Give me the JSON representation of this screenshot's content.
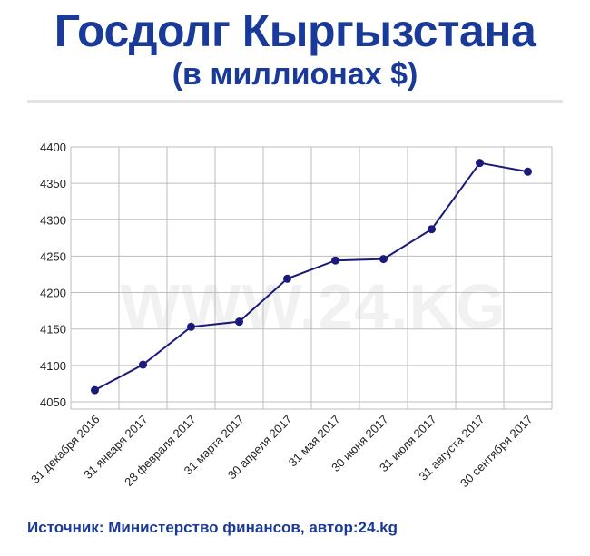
{
  "header": {
    "title": "Госдолг Кыргызстана",
    "subtitle": "(в миллионах $)"
  },
  "watermark": "WWW.24.KG",
  "source": "Источник: Министерство финансов, автор:24.kg",
  "colors": {
    "title": "#1a3a9a",
    "line": "#1a1a7a",
    "grid": "#bdbdbd",
    "watermark": "#f1f1f1"
  },
  "chart_data": {
    "type": "line",
    "categories": [
      "31 декабря 2016",
      "31 января 2017",
      "28 февраля 2017",
      "31 марта 2017",
      "30 апреля 2017",
      "31 мая 2017",
      "30 июня 2017",
      "31 июля 2017",
      "31 августа 2017",
      "30 сентября 2017"
    ],
    "values": [
      4066,
      4101,
      4153,
      4160,
      4219,
      4244,
      4246,
      4287,
      4378,
      4366
    ],
    "yticks": [
      4050,
      4100,
      4150,
      4200,
      4250,
      4300,
      4350,
      4400
    ],
    "ylim": [
      4040,
      4400
    ],
    "grid": true,
    "markers": true
  }
}
